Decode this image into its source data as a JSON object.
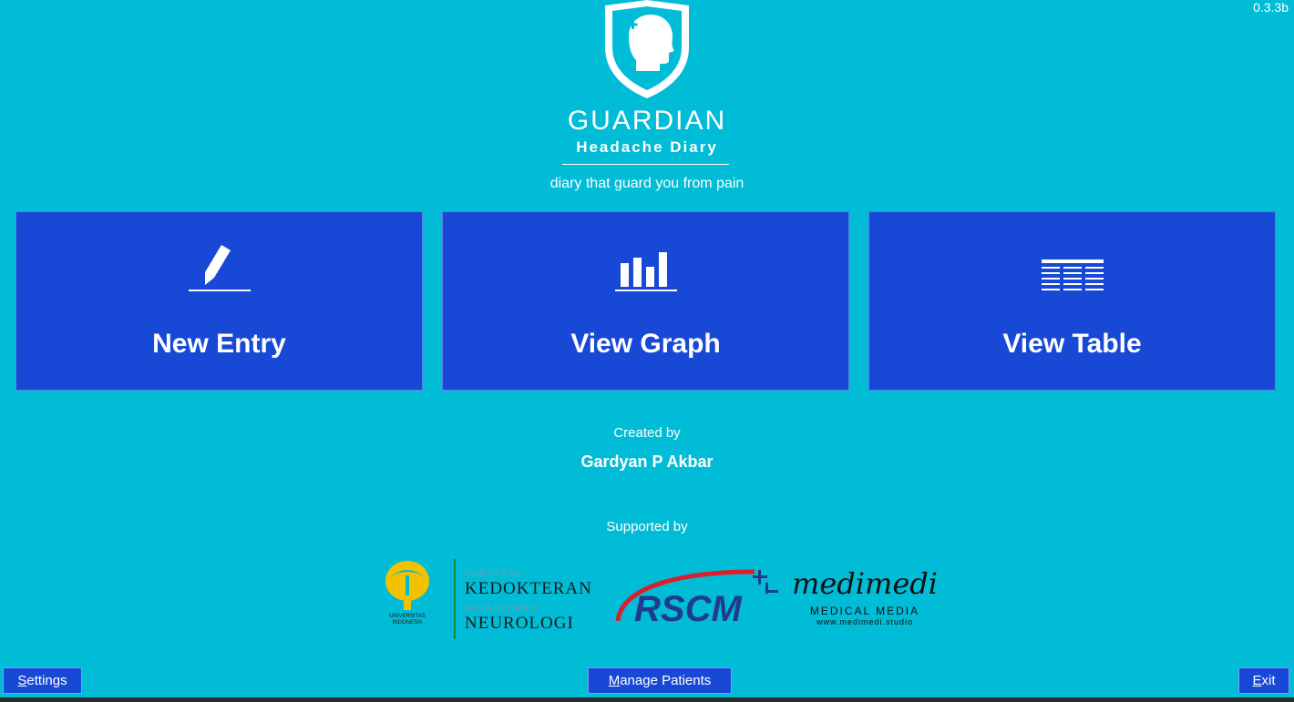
{
  "app": {
    "version": "0.3.3b",
    "brand_title": "GUARDIAN",
    "brand_subtitle": "Headache Diary",
    "tagline": "diary that guard you from pain"
  },
  "tiles": [
    {
      "label": "New Entry",
      "icon": "pencil-icon"
    },
    {
      "label": "View Graph",
      "icon": "bar-chart-icon"
    },
    {
      "label": "View Table",
      "icon": "table-icon"
    }
  ],
  "credits": {
    "created_label": "Created by",
    "author": "Gardyan P Akbar",
    "supported_label": "Supported by"
  },
  "sponsors": {
    "ui": {
      "line1": "UNIVERSITAS",
      "line2": "INDONESIA"
    },
    "fk": {
      "small1": "FAKULTAS",
      "big1": "KEDOKTERAN",
      "small2": "DEPARTEMEN",
      "big2": "NEUROLOGI"
    },
    "rscm": {
      "text": "RSCM"
    },
    "medimedi": {
      "script": "medimedi",
      "caption": "MEDICAL MEDIA",
      "url": "www.medimedi.studio"
    }
  },
  "footer": {
    "settings": {
      "accel": "S",
      "rest": "ettings"
    },
    "manage": {
      "accel": "M",
      "rest": "anage Patients"
    },
    "exit": {
      "accel": "E",
      "rest": "xit"
    }
  },
  "colors": {
    "background": "#00bcd6",
    "tile": "#1849d6",
    "text": "#ffffff"
  }
}
